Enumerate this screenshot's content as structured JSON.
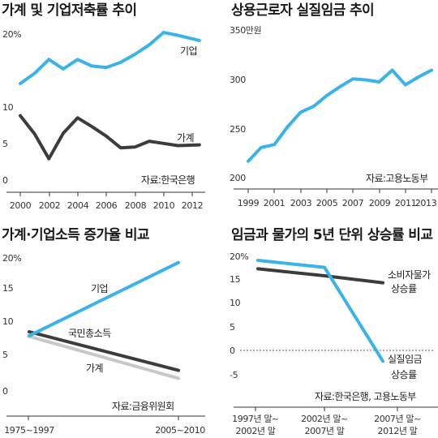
{
  "colors": {
    "blue": "#39b3ea",
    "dark": "#3c3c3c",
    "grey": "#c8c8c8"
  },
  "chart_data": [
    {
      "type": "line",
      "title": "가계 및 기업저축률 추이",
      "source": "자료:한국은행",
      "y_tick_labels": [
        "0",
        "5",
        "10",
        "20%"
      ],
      "ylim": [
        0,
        20
      ],
      "x_tick_labels": [
        "2000",
        "2002",
        "2004",
        "2006",
        "2008",
        "2010",
        "2012"
      ],
      "xlim": [
        2000,
        2012.7
      ],
      "series": [
        {
          "name": "기업",
          "color": "blue",
          "x": [
            2000,
            2001,
            2002,
            2003,
            2004,
            2005,
            2006,
            2007,
            2008,
            2009,
            2010,
            2011,
            2012.5
          ],
          "y": [
            13.0,
            14.4,
            16.3,
            15.0,
            16.3,
            15.4,
            15.2,
            15.9,
            17.0,
            18.3,
            20.0,
            19.6,
            18.9
          ]
        },
        {
          "name": "가계",
          "color": "dark",
          "x": [
            2000,
            2001,
            2002,
            2003,
            2004,
            2005,
            2006,
            2007,
            2008,
            2009,
            2010,
            2011,
            2012.5
          ],
          "y": [
            8.6,
            6.1,
            2.7,
            6.2,
            8.3,
            7.1,
            5.8,
            4.2,
            4.3,
            5.1,
            4.8,
            4.5,
            4.6
          ]
        }
      ]
    },
    {
      "type": "line",
      "title": "상용근로자 실질임금 추이",
      "source": "자료:고용노동부",
      "y_tick_labels": [
        "200",
        "250",
        "300",
        "350만원"
      ],
      "ylim": [
        200,
        350
      ],
      "x_tick_labels": [
        "1999",
        "2001",
        "2003",
        "2005",
        "2007",
        "2009",
        "2011",
        "2013"
      ],
      "xlim": [
        1999,
        2013
      ],
      "series": [
        {
          "name": "",
          "color": "blue",
          "x": [
            1999,
            2000,
            2001,
            2002,
            2003,
            2004,
            2005,
            2006,
            2007,
            2008,
            2009,
            2010,
            2011,
            2012,
            2013
          ],
          "y": [
            216,
            230,
            233,
            251,
            266,
            272,
            283,
            292,
            300,
            299,
            297,
            309,
            294,
            302,
            309
          ]
        }
      ]
    },
    {
      "type": "line",
      "title": "가계·기업소득 증가율 비교",
      "source": "자료:금융위원회",
      "y_tick_labels": [
        "0",
        "5",
        "10",
        "15",
        "20%"
      ],
      "ylim": [
        0,
        20
      ],
      "x_tick_labels": [
        "1975~1997",
        "2005~2010"
      ],
      "series": [
        {
          "name": "기업",
          "color": "blue",
          "y": [
            8.3,
            19.3
          ]
        },
        {
          "name": "국민총소득",
          "color": "dark",
          "y": [
            8.9,
            3.1
          ]
        },
        {
          "name": "가계",
          "color": "grey",
          "y": [
            8.2,
            1.9
          ]
        }
      ]
    },
    {
      "type": "line",
      "title": "임금과 물가의 5년 단위 상승률 비교",
      "source": "자료:한국은행, 고용노동부",
      "y_tick_labels": [
        "-5",
        "0",
        "5",
        "10",
        "15",
        "20%"
      ],
      "ylim": [
        -7,
        20
      ],
      "x_tick_labels": [
        [
          "1997년 말~",
          "2002년 말"
        ],
        [
          "2002년 말~",
          "2007년 말"
        ],
        [
          "2007년 말~",
          "2012년 말"
        ]
      ],
      "series": [
        {
          "name": [
            "소비자물가",
            "상승률"
          ],
          "color": "dark",
          "y": [
            17.5,
            16.0,
            14.5
          ]
        },
        {
          "name": [
            "실질임금",
            "상승률"
          ],
          "color": "blue",
          "y": [
            19.3,
            17.8,
            -2.3
          ]
        }
      ]
    }
  ]
}
